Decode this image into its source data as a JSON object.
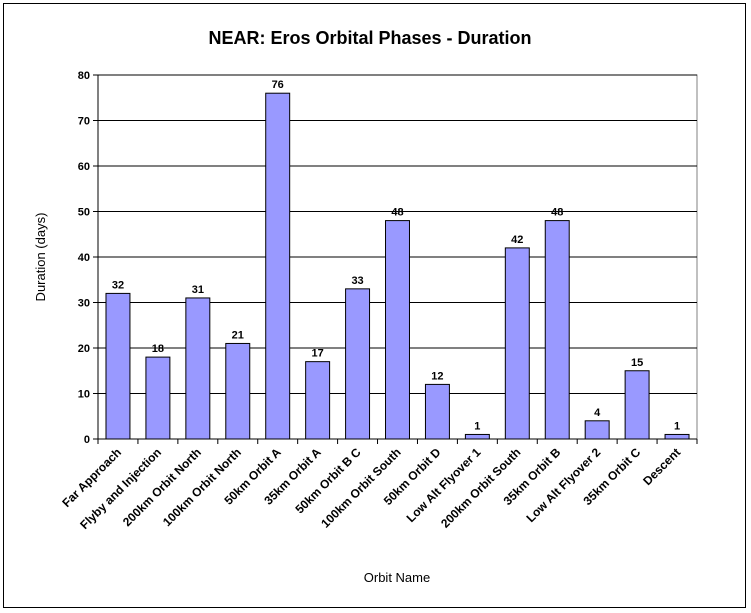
{
  "chart_data": {
    "type": "bar",
    "title": "NEAR:  Eros Orbital Phases - Duration",
    "xlabel": "Orbit Name",
    "ylabel": "Duration (days)",
    "ylim": [
      0,
      80
    ],
    "ytick_step": 10,
    "grid": true,
    "legend": "none",
    "categories": [
      "Far Approach",
      "Flyby and Injection",
      "200km Orbit North",
      "100km Orbit North",
      "50km Orbit A",
      "35km Orbit A",
      "50km Orbit B C",
      "100km Orbit South",
      "50km Orbit D",
      "Low Alt Flyover 1",
      "200km Orbit South",
      "35km Orbit B",
      "Low Alt Flyover 2",
      "35km Orbit C",
      "Descent"
    ],
    "values": [
      32,
      18,
      31,
      21,
      76,
      17,
      33,
      48,
      12,
      1,
      42,
      48,
      4,
      15,
      1
    ],
    "bar_color": "#9999ff",
    "bar_edge_color": "#000000"
  }
}
